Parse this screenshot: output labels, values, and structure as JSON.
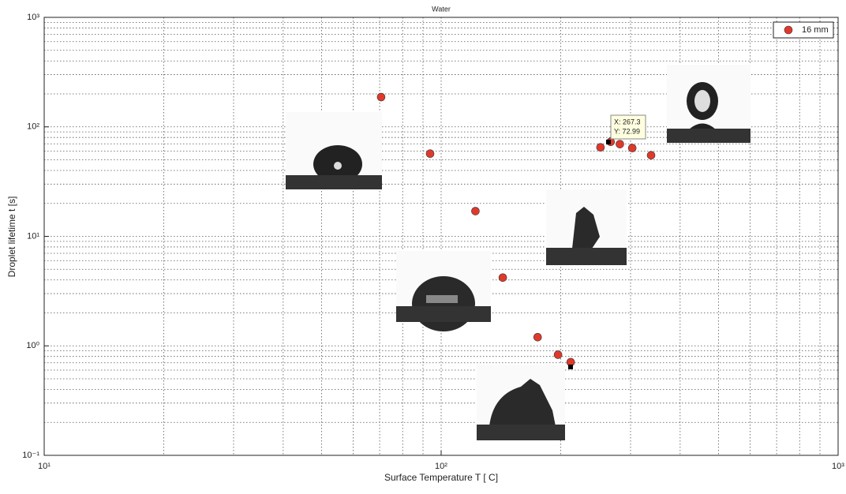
{
  "chart_data": {
    "type": "scatter",
    "title": "Water",
    "xlabel": "Surface Temperature T [ C]",
    "ylabel": "Droplet lifetime t [s]",
    "log_x": true,
    "log_y": true,
    "grid": true,
    "legend": "upper right",
    "xlim": [
      10,
      1000
    ],
    "ylim": [
      0.1,
      1000
    ],
    "xticks": [
      {
        "value": 10,
        "label": "10¹"
      },
      {
        "value": 100,
        "label": "10²"
      },
      {
        "value": 1000,
        "label": "10³"
      }
    ],
    "yticks": [
      {
        "value": 0.1,
        "label": "10⁻¹"
      },
      {
        "value": 1,
        "label": "10⁰"
      },
      {
        "value": 10,
        "label": "10¹"
      },
      {
        "value": 100,
        "label": "10²"
      },
      {
        "value": 1000,
        "label": "10³"
      }
    ],
    "series": [
      {
        "name": "16 mm",
        "color": "#e0392b",
        "x": [
          70.6,
          93.8,
          122,
          143,
          175,
          197,
          212,
          252,
          267.3,
          282,
          303,
          338
        ],
        "values": [
          187,
          56.9,
          17.0,
          4.2,
          1.2,
          0.83,
          0.71,
          65,
          72.99,
          69.5,
          64,
          55
        ]
      }
    ],
    "annotations": [
      "X: 267.3",
      "Y: 72.99"
    ]
  }
}
